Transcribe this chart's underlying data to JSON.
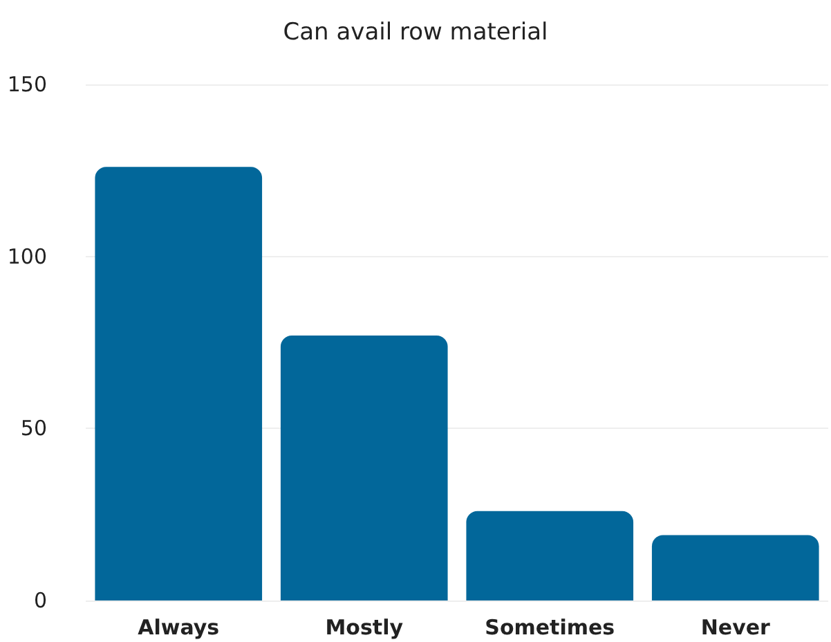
{
  "chart_data": {
    "type": "bar",
    "title": "Can avail row material",
    "categories": [
      "Always",
      "Mostly",
      "Sometimes",
      "Never"
    ],
    "values": [
      126,
      77,
      26,
      19
    ],
    "color": "#02679a",
    "ylim": [
      0,
      150
    ],
    "yticks": [
      0,
      50,
      100,
      150
    ],
    "grid": "y"
  }
}
